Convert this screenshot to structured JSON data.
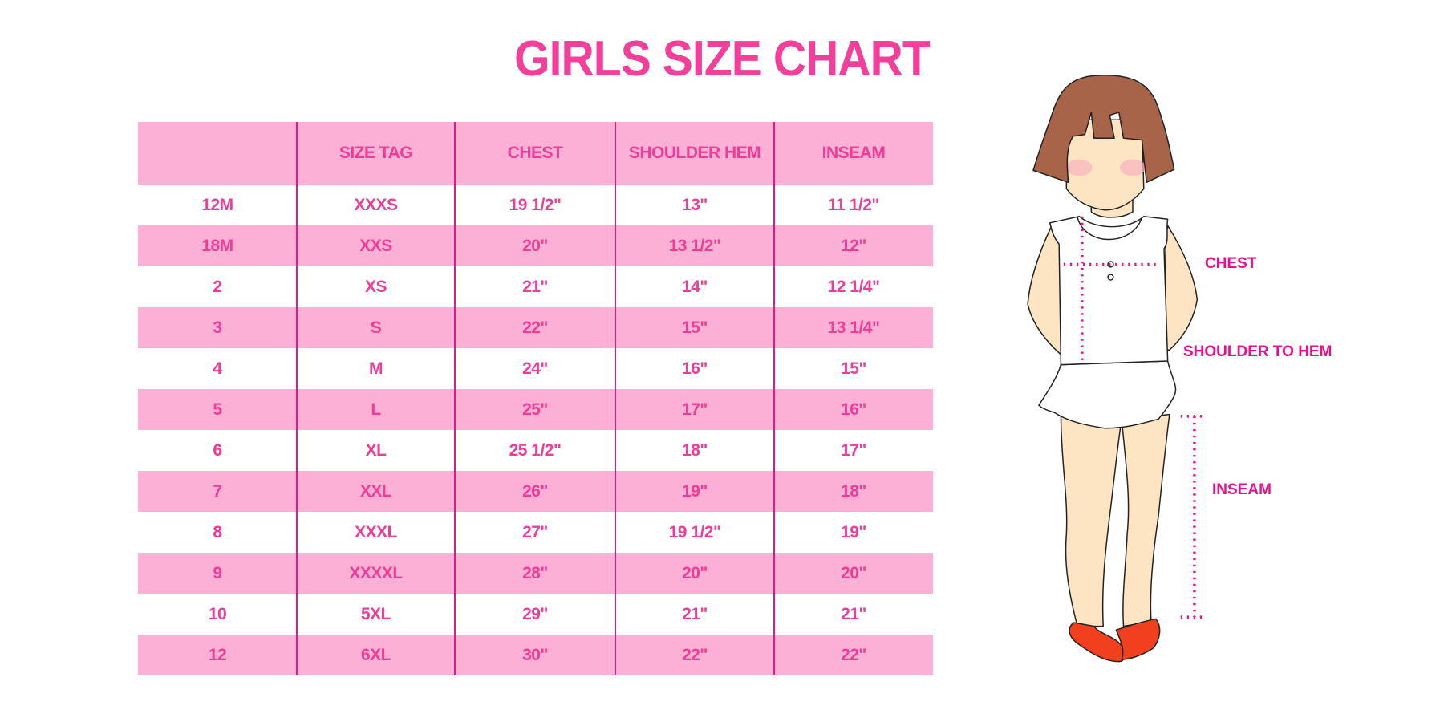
{
  "title": "GIRLS SIZE CHART",
  "table": {
    "headers": [
      "",
      "SIZE TAG",
      "CHEST",
      "SHOULDER HEM",
      "INSEAM"
    ],
    "rows": [
      [
        "12M",
        "XXXS",
        "19 1/2\"",
        "13\"",
        "11 1/2\""
      ],
      [
        "18M",
        "XXS",
        "20\"",
        "13 1/2\"",
        "12\""
      ],
      [
        "2",
        "XS",
        "21\"",
        "14\"",
        "12 1/4\""
      ],
      [
        "3",
        "S",
        "22\"",
        "15\"",
        "13 1/4\""
      ],
      [
        "4",
        "M",
        "24\"",
        "16\"",
        "15\""
      ],
      [
        "5",
        "L",
        "25\"",
        "17\"",
        "16\""
      ],
      [
        "6",
        "XL",
        "25 1/2\"",
        "18\"",
        "17\""
      ],
      [
        "7",
        "XXL",
        "26\"",
        "19\"",
        "18\""
      ],
      [
        "8",
        "XXXL",
        "27\"",
        "19 1/2\"",
        "19\""
      ],
      [
        "9",
        "XXXXL",
        "28\"",
        "20\"",
        "20\""
      ],
      [
        "10",
        "5XL",
        "29\"",
        "21\"",
        "21\""
      ],
      [
        "12",
        "6XL",
        "30\"",
        "22\"",
        "22\""
      ]
    ]
  },
  "figure": {
    "labels": {
      "chest": "CHEST",
      "shoulder_to_hem": "SHOULDER TO HEM",
      "inseam": "INSEAM"
    }
  },
  "colors": {
    "accent": "#f13f9a",
    "row_fill": "#fdb0d6",
    "divider": "#e8168c"
  }
}
